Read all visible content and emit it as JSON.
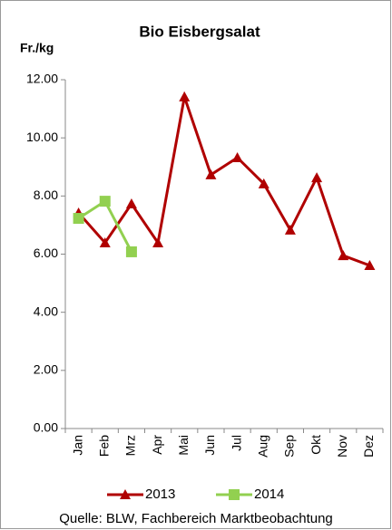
{
  "chart_data": {
    "type": "line",
    "title": "Bio Eisbergsalat",
    "y_label": "Fr./kg",
    "categories": [
      "Jan",
      "Feb",
      "Mrz",
      "Apr",
      "Mai",
      "Jun",
      "Jul",
      "Aug",
      "Sep",
      "Okt",
      "Nov",
      "Dez"
    ],
    "series": [
      {
        "name": "2013",
        "color": "#b00000",
        "marker": "triangle",
        "values": [
          7.42,
          6.39,
          7.73,
          6.39,
          11.41,
          8.73,
          9.32,
          8.42,
          6.83,
          8.63,
          5.95,
          5.61
        ]
      },
      {
        "name": "2014",
        "color": "#92d050",
        "marker": "square",
        "values": [
          7.23,
          7.82,
          6.08,
          null,
          null,
          null,
          null,
          null,
          null,
          null,
          null,
          null
        ]
      }
    ],
    "ylim": [
      0,
      12
    ],
    "yticks": [
      {
        "value": 0,
        "label": "0.00"
      },
      {
        "value": 2,
        "label": "2.00"
      },
      {
        "value": 4,
        "label": "4.00"
      },
      {
        "value": 6,
        "label": "6.00"
      },
      {
        "value": 8,
        "label": "8.00"
      },
      {
        "value": 10,
        "label": "10.00"
      },
      {
        "value": 12,
        "label": "12.00"
      }
    ],
    "grid": false,
    "legend": "bottom",
    "source": "Quelle: BLW, Fachbereich Marktbeobachtung"
  }
}
